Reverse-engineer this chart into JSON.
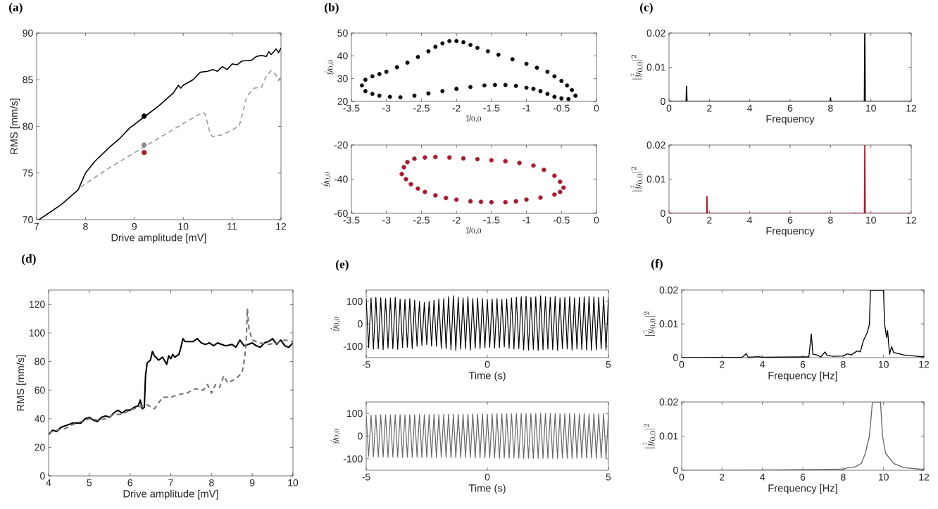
{
  "chart_data": [
    {
      "type": "line",
      "title": "(a)",
      "xlabel": "Drive amplitude [mV]",
      "ylabel": "RMS [mm/s]",
      "xlim": [
        7,
        12
      ],
      "ylim": [
        70,
        90
      ],
      "xticks": [
        7,
        8,
        9,
        10,
        11,
        12
      ],
      "yticks": [
        70,
        75,
        80,
        85,
        90
      ],
      "series": [
        {
          "color": "#000000",
          "x": [
            7.05,
            7.5,
            7.85,
            8.0,
            8.2,
            8.5,
            8.7,
            8.9,
            9.2,
            9.5,
            9.8,
            9.9,
            9.95,
            10.0,
            10.2,
            10.35,
            10.5,
            10.6,
            10.7,
            10.8,
            10.9,
            11.0,
            11.1,
            11.2,
            11.4,
            11.5,
            11.6,
            11.7,
            11.75,
            11.8,
            11.9,
            11.95,
            12.0
          ],
          "values": [
            70,
            71.6,
            73.2,
            75,
            76.3,
            77.8,
            78.7,
            79.8,
            81,
            82.2,
            83.6,
            84.4,
            84.1,
            84.4,
            85,
            85.8,
            85.9,
            86.1,
            85.9,
            86.4,
            86.1,
            86.7,
            86.6,
            87,
            87.1,
            87.5,
            87.6,
            87.5,
            88,
            87.7,
            88.3,
            87.9,
            88.4
          ]
        },
        {
          "color": "#999999",
          "line_style": "dashed",
          "x": [
            7.9,
            8.5,
            9.2,
            10.0,
            10.4,
            10.45,
            10.55,
            10.6,
            10.8,
            11.0,
            11.15,
            11.3,
            11.45,
            11.6,
            11.7,
            11.8,
            11.9,
            11.95,
            12.0
          ],
          "values": [
            73.5,
            75.6,
            77.8,
            80.3,
            81.5,
            81.3,
            79.2,
            78.9,
            79.1,
            79.6,
            80.1,
            83.2,
            84.1,
            84.2,
            85.4,
            86,
            85.5,
            84.9,
            85.4
          ]
        },
        {
          "type": "scatter",
          "marker": "circle",
          "x": [
            9.2,
            9.2,
            9.2
          ],
          "values": [
            81.1,
            78,
            77.2
          ],
          "colors": [
            "#000000",
            "#8c8c8c",
            "#a51c30"
          ]
        }
      ]
    },
    {
      "type": "line",
      "title": "(b)",
      "xlabel": "y_{0,0}",
      "ylabel": "\\dot{y}_{0,0}",
      "xlim": [
        -3.5,
        0
      ],
      "ylim": [
        20,
        50
      ],
      "xticks": [
        -3.5,
        -3,
        -2.5,
        -2,
        -1.5,
        -1,
        -0.5,
        0
      ],
      "yticks": [
        20,
        30,
        40,
        50
      ],
      "series": [
        {
          "type": "scatter",
          "marker": "circle",
          "color": "#000000",
          "x": [
            -3.35,
            -3.3,
            -3.2,
            -3.1,
            -3.0,
            -2.85,
            -2.7,
            -2.55,
            -2.4,
            -2.3,
            -2.2,
            -2.1,
            -2.0,
            -1.9,
            -1.8,
            -1.7,
            -1.55,
            -1.4,
            -1.2,
            -1.0,
            -0.85,
            -0.7,
            -0.6,
            -0.5,
            -0.42,
            -0.35,
            -0.3,
            -0.4,
            -0.5,
            -0.6,
            -0.7,
            -0.8,
            -0.9,
            -1.0,
            -1.15,
            -1.3,
            -1.45,
            -1.6,
            -1.8,
            -2.0,
            -2.2,
            -2.4,
            -2.6,
            -2.8,
            -2.95,
            -3.1,
            -3.2,
            -3.3
          ],
          "values": [
            27,
            29.5,
            31,
            32,
            33,
            35,
            37,
            39.5,
            42,
            44,
            45.5,
            46.5,
            46.5,
            46,
            44.8,
            43.5,
            42,
            40.5,
            38.5,
            36.5,
            34.8,
            33,
            31,
            29,
            27,
            25,
            22.5,
            21,
            21.3,
            22,
            23.3,
            24.5,
            25.5,
            26,
            26.8,
            27.2,
            27.2,
            27,
            26.3,
            25.5,
            24.5,
            23.5,
            22.5,
            21.8,
            22,
            22.5,
            23.3,
            24.5
          ]
        }
      ]
    },
    {
      "type": "line",
      "xlabel": "y_{0,0}",
      "ylabel": "\\dot{y}_{0,0}",
      "xlim": [
        -3.5,
        0
      ],
      "ylim": [
        -60,
        -20
      ],
      "xticks": [
        -3.5,
        -3,
        -2.5,
        -2,
        -1.5,
        -1,
        -0.5,
        0
      ],
      "yticks": [
        -60,
        -40,
        -20
      ],
      "series": [
        {
          "type": "scatter",
          "marker": "circle",
          "color": "#a51c30",
          "x": [
            -2.78,
            -2.75,
            -2.7,
            -2.6,
            -2.45,
            -2.3,
            -2.1,
            -1.9,
            -1.7,
            -1.5,
            -1.3,
            -1.1,
            -0.9,
            -0.75,
            -0.6,
            -0.52,
            -0.47,
            -0.52,
            -0.6,
            -0.8,
            -1.0,
            -1.15,
            -1.3,
            -1.5,
            -1.65,
            -1.8,
            -2.0,
            -2.15,
            -2.3,
            -2.45,
            -2.55,
            -2.65,
            -2.72
          ],
          "values": [
            -37,
            -33,
            -30,
            -28,
            -27.3,
            -27,
            -27.3,
            -27.8,
            -28.3,
            -28.9,
            -29.5,
            -30.5,
            -32,
            -34.5,
            -38,
            -41.5,
            -45,
            -47.5,
            -49,
            -50.8,
            -52,
            -53,
            -53.5,
            -53.5,
            -53.3,
            -53,
            -52,
            -51,
            -49.5,
            -47.5,
            -45.5,
            -43,
            -40
          ]
        }
      ]
    },
    {
      "type": "line",
      "title": "(c)",
      "xlabel": "Frequency",
      "ylabel": "|\\hat{\\dot{y}}_{0,0}|^2",
      "xlim": [
        0,
        12
      ],
      "ylim": [
        0,
        0.02
      ],
      "xticks": [
        0,
        2,
        4,
        6,
        8,
        10,
        12
      ],
      "yticks": [
        0,
        0.01,
        0.02
      ],
      "series": [
        {
          "color": "#000000",
          "x": [
            0,
            0.85,
            0.87,
            0.89,
            7.98,
            8.0,
            8.02,
            9.68,
            9.7,
            9.72,
            12
          ],
          "values": [
            0,
            0,
            0.0044,
            0,
            0,
            0.001,
            0,
            0,
            0.02,
            0,
            0
          ]
        }
      ]
    },
    {
      "type": "line",
      "xlabel": "Frequency",
      "ylabel": "|\\hat{\\dot{y}}_{0,0}|^2",
      "xlim": [
        0,
        12
      ],
      "ylim": [
        0,
        0.02
      ],
      "xticks": [
        0,
        2,
        4,
        6,
        8,
        10,
        12
      ],
      "yticks": [
        0,
        0.01,
        0.02
      ],
      "series": [
        {
          "color": "#a51c30",
          "x": [
            0,
            1.87,
            1.88,
            1.9,
            9.1,
            9.2,
            9.3,
            9.68,
            9.7,
            9.72,
            12
          ],
          "values": [
            0,
            0,
            0.005,
            0,
            0,
            0.0001,
            0,
            0,
            0.02,
            0,
            0
          ]
        }
      ]
    },
    {
      "type": "line",
      "title": "(d)",
      "xlabel": "Drive amplitude [mV]",
      "ylabel": "RMS [mm/s]",
      "xlim": [
        4,
        10
      ],
      "ylim": [
        0,
        130
      ],
      "xticks": [
        4,
        5,
        6,
        7,
        8,
        9,
        10
      ],
      "yticks": [
        0,
        20,
        40,
        60,
        80,
        100,
        120
      ],
      "series": [
        {
          "color": "#000000",
          "x": [
            4,
            4.1,
            4.2,
            4.3,
            4.4,
            4.5,
            4.6,
            4.7,
            4.8,
            4.9,
            5.0,
            5.1,
            5.2,
            5.3,
            5.4,
            5.5,
            5.6,
            5.7,
            5.8,
            5.9,
            6.0,
            6.1,
            6.2,
            6.25,
            6.3,
            6.35,
            6.38,
            6.42,
            6.5,
            6.55,
            6.6,
            6.7,
            6.8,
            6.9,
            6.95,
            7.0,
            7.05,
            7.1,
            7.2,
            7.25,
            7.3,
            7.35,
            7.45,
            7.55,
            7.65,
            7.75,
            7.85,
            7.95,
            8.05,
            8.15,
            8.25,
            8.35,
            8.5,
            8.6,
            8.7,
            8.8,
            8.9,
            9.0,
            9.1,
            9.2,
            9.3,
            9.4,
            9.5,
            9.6,
            9.7,
            9.8,
            9.9,
            10
          ],
          "values": [
            29,
            32,
            31,
            34,
            35,
            36,
            37,
            37,
            37,
            40,
            41,
            39,
            38,
            41,
            42,
            41,
            44,
            46,
            44,
            46,
            46,
            48,
            49,
            53,
            47,
            48,
            70,
            79,
            81,
            87,
            84,
            81,
            83,
            78,
            84,
            82,
            85,
            83,
            85,
            90,
            96,
            94,
            94,
            94,
            96,
            93,
            92,
            93,
            91,
            93,
            92,
            91,
            92,
            90,
            95,
            91,
            92,
            93,
            91,
            90,
            93,
            94,
            96,
            92,
            95,
            91,
            90,
            93
          ]
        },
        {
          "color": "#777777",
          "line_style": "dashed",
          "x": [
            4,
            4.2,
            4.4,
            4.6,
            4.8,
            5.0,
            5.2,
            5.4,
            5.6,
            5.8,
            6.0,
            6.2,
            6.4,
            6.6,
            6.8,
            7.0,
            7.2,
            7.4,
            7.6,
            7.8,
            7.9,
            8.0,
            8.1,
            8.2,
            8.3,
            8.4,
            8.6,
            8.75,
            8.8,
            8.85,
            8.88,
            8.92,
            9.0,
            9.2,
            9.4,
            9.6,
            9.8,
            10
          ],
          "values": [
            30,
            32,
            33,
            36,
            38,
            40,
            39,
            40,
            43,
            43,
            46,
            48,
            50,
            47,
            55,
            55,
            57,
            58,
            61,
            60,
            64,
            58,
            64,
            62,
            70,
            65,
            68,
            72,
            80,
            92,
            117,
            103,
            95,
            93,
            92,
            93,
            95,
            94
          ]
        }
      ]
    },
    {
      "type": "line",
      "title": "(e)",
      "xlabel": "Time (s)",
      "ylabel": "\\dot{y}_{0,0}",
      "xlim": [
        -5,
        5
      ],
      "ylim": [
        -150,
        150
      ],
      "xticks": [
        -5,
        0,
        5
      ],
      "yticks": [
        -100,
        0,
        100
      ],
      "x": [
        -5,
        -4.9,
        -4.8,
        -4.7,
        -4.6,
        -4.5,
        -4.4,
        -4.3,
        -4.2,
        -4.1,
        -4,
        -3.9,
        -3.8,
        -3.7,
        -3.6,
        -3.5,
        -3.4,
        -3.3,
        -3.2,
        -3.1,
        -3,
        -2.9,
        -2.8,
        -2.7,
        -2.6,
        -2.5,
        -2.4,
        -2.3,
        -2.2,
        -2.1,
        -2,
        -1.9,
        -1.8,
        -1.7,
        -1.6,
        -1.5,
        -1.4,
        -1.3,
        -1.2,
        -1.1,
        -1,
        -0.9,
        -0.8,
        -0.7,
        -0.6,
        -0.5,
        -0.4,
        -0.3,
        -0.2,
        -0.1,
        0,
        0.1,
        0.2,
        0.3,
        0.4,
        0.5,
        0.6,
        0.7,
        0.8,
        0.9,
        1,
        1.1,
        1.2,
        1.3,
        1.4,
        1.5,
        1.6,
        1.7,
        1.8,
        1.9,
        2,
        2.1,
        2.2,
        2.3,
        2.4,
        2.5,
        2.6,
        2.7,
        2.8,
        2.9,
        3,
        3.1,
        3.2,
        3.3,
        3.4,
        3.5,
        3.6,
        3.7,
        3.8,
        3.9,
        4,
        4.1,
        4.2,
        4.3,
        4.4,
        4.5,
        4.6,
        4.7,
        4.8,
        4.9,
        5
      ],
      "series": [
        {
          "color": "#000000",
          "values": [
            110,
            -105,
            115,
            -112,
            118,
            -110,
            116,
            -114,
            112,
            -108,
            115,
            -111,
            117,
            -113,
            110,
            -105,
            108,
            -104,
            112,
            -110,
            105,
            -100,
            98,
            -95,
            95,
            -92,
            100,
            -98,
            105,
            -100,
            110,
            -108,
            112,
            -110,
            120,
            -115,
            125,
            -118,
            118,
            -112,
            115,
            -110,
            120,
            -116,
            112,
            -108,
            115,
            -110,
            112,
            -106,
            108,
            -104,
            110,
            -108,
            112,
            -105,
            108,
            -102,
            110,
            -108,
            115,
            -112,
            118,
            -110,
            120,
            -115,
            122,
            -116,
            118,
            -113,
            120,
            -118,
            125,
            -115,
            120,
            -112,
            118,
            -115,
            122,
            -118,
            115,
            -110,
            118,
            -112,
            120,
            -116,
            115,
            -112,
            118,
            -114,
            120,
            -116,
            122,
            -118,
            120,
            -115,
            118,
            -112,
            120,
            -116,
            118
          ]
        }
      ]
    },
    {
      "type": "line",
      "xlabel": "Time (s)",
      "ylabel": "\\dot{y}_{0,0}",
      "xlim": [
        -5,
        5
      ],
      "ylim": [
        -150,
        150
      ],
      "xticks": [
        -5,
        0,
        5
      ],
      "yticks": [
        -100,
        0,
        100
      ],
      "x": [
        -5,
        -4.9,
        -4.8,
        -4.7,
        -4.6,
        -4.5,
        -4.4,
        -4.3,
        -4.2,
        -4.1,
        -4,
        -3.9,
        -3.8,
        -3.7,
        -3.6,
        -3.5,
        -3.4,
        -3.3,
        -3.2,
        -3.1,
        -3,
        -2.9,
        -2.8,
        -2.7,
        -2.6,
        -2.5,
        -2.4,
        -2.3,
        -2.2,
        -2.1,
        -2,
        -1.9,
        -1.8,
        -1.7,
        -1.6,
        -1.5,
        -1.4,
        -1.3,
        -1.2,
        -1.1,
        -1,
        -0.9,
        -0.8,
        -0.7,
        -0.6,
        -0.5,
        -0.4,
        -0.3,
        -0.2,
        -0.1,
        0,
        0.1,
        0.2,
        0.3,
        0.4,
        0.5,
        0.6,
        0.7,
        0.8,
        0.9,
        1,
        1.1,
        1.2,
        1.3,
        1.4,
        1.5,
        1.6,
        1.7,
        1.8,
        1.9,
        2,
        2.1,
        2.2,
        2.3,
        2.4,
        2.5,
        2.6,
        2.7,
        2.8,
        2.9,
        3,
        3.1,
        3.2,
        3.3,
        3.4,
        3.5,
        3.6,
        3.7,
        3.8,
        3.9,
        4,
        4.1,
        4.2,
        4.3,
        4.4,
        4.5,
        4.6,
        4.7,
        4.8,
        4.9,
        5
      ],
      "series": [
        {
          "color": "#666666",
          "values": [
            90,
            -88,
            92,
            -90,
            93,
            -91,
            94,
            -92,
            94,
            -92,
            93,
            -91,
            94,
            -92,
            95,
            -93,
            94,
            -92,
            95,
            -93,
            94,
            -92,
            95,
            -93,
            94,
            -92,
            95,
            -93,
            96,
            -94,
            95,
            -93,
            96,
            -94,
            97,
            -95,
            96,
            -94,
            97,
            -95,
            96,
            -94,
            97,
            -95,
            98,
            -96,
            97,
            -95,
            98,
            -96,
            97,
            -95,
            98,
            -96,
            99,
            -97,
            98,
            -96,
            99,
            -97,
            98,
            -96,
            99,
            -97,
            100,
            -98,
            99,
            -97,
            100,
            -98,
            99,
            -97,
            100,
            -98,
            99,
            -97,
            100,
            -98,
            99,
            -97,
            98,
            -96,
            99,
            -97,
            100,
            -98,
            99,
            -97,
            98,
            -96,
            99,
            -97,
            98,
            -96,
            99,
            -97,
            98,
            -96,
            99,
            -97,
            98
          ]
        }
      ]
    },
    {
      "type": "line",
      "title": "(f)",
      "xlabel": "Frequency [Hz]",
      "ylabel": "|\\hat{\\dot{y}}_{0,0}|^2",
      "xlim": [
        0,
        12
      ],
      "ylim": [
        0,
        0.02
      ],
      "xticks": [
        0,
        2,
        4,
        6,
        8,
        10,
        12
      ],
      "yticks": [
        0,
        0.01,
        0.02
      ],
      "series": [
        {
          "color": "#000000",
          "x": [
            0,
            3.0,
            3.2,
            3.3,
            3.8,
            4.0,
            6.0,
            6.3,
            6.42,
            6.5,
            6.7,
            6.9,
            7.1,
            7.2,
            7.5,
            8.0,
            8.2,
            8.4,
            8.7,
            8.85,
            9.0,
            9.2,
            9.3,
            9.35,
            10.0,
            10.05,
            10.15,
            10.2,
            10.3,
            10.4,
            10.5,
            11.0,
            11.5,
            12
          ],
          "values": [
            0,
            0.0001,
            0.0012,
            0.0001,
            0.0003,
            0.0001,
            0.0002,
            0.0002,
            0.007,
            0.001,
            0.0008,
            0.0002,
            0.0017,
            0.0007,
            0.0004,
            0.0005,
            0.0011,
            0.0008,
            0.002,
            0.0017,
            0.005,
            0.0075,
            0.0098,
            0.02,
            0.02,
            0.01,
            0.006,
            0.008,
            0.001,
            0.0033,
            0.0015,
            0.0008,
            0.0005,
            0.0002
          ]
        }
      ]
    },
    {
      "type": "line",
      "xlabel": "Frequency [Hz]",
      "ylabel": "|\\hat{\\dot{y}}_{0,0}|^2",
      "xlim": [
        0,
        12
      ],
      "ylim": [
        0,
        0.02
      ],
      "xticks": [
        0,
        2,
        4,
        6,
        8,
        10,
        12
      ],
      "yticks": [
        0,
        0.01,
        0.02
      ],
      "series": [
        {
          "color": "#666666",
          "x": [
            0,
            5,
            8,
            8.2,
            8.6,
            8.9,
            9.1,
            9.3,
            9.45,
            9.85,
            9.95,
            10.1,
            10.5,
            11,
            12
          ],
          "values": [
            0,
            0.0001,
            0.0003,
            0.0007,
            0.001,
            0.002,
            0.005,
            0.01,
            0.02,
            0.02,
            0.01,
            0.005,
            0.002,
            0.0008,
            0.0002
          ]
        }
      ]
    }
  ]
}
